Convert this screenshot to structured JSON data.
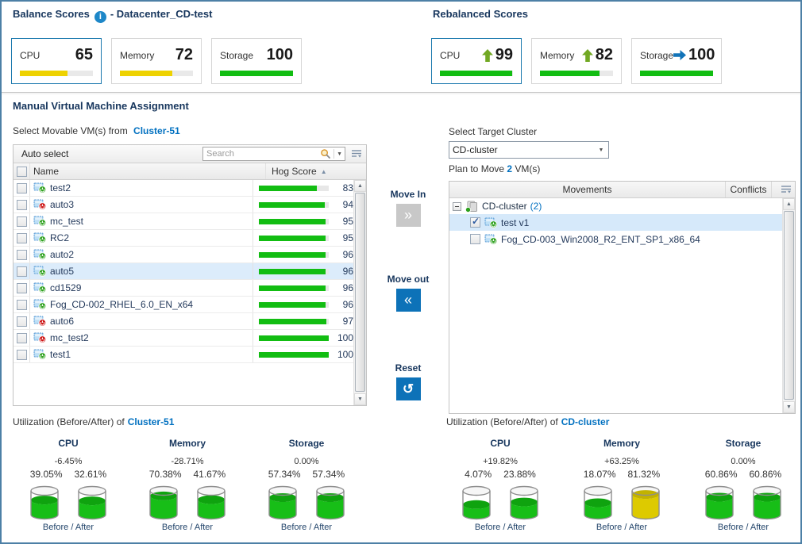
{
  "icons": {
    "info": "i",
    "dropdown": "▼",
    "sort_asc": "▲",
    "scroll_up": "▲",
    "scroll_down": "▼",
    "move_in_glyph": "»",
    "move_out_glyph": "«",
    "reset_glyph": "↺"
  },
  "colors": {
    "title_navy": "#17365d",
    "link_blue": "#0070c0",
    "bar_yellow": "#eed200",
    "bar_green": "#12bd12",
    "trend_up": "#71a823",
    "trend_right": "#1173b8",
    "button_blue": "#0d72b8",
    "button_disabled": "#c8c8c8",
    "vm_on": "#2ca01c",
    "vm_off": "#cc1111",
    "row_highlight": "#dcecfb",
    "cyl_green": "#17be17",
    "cyl_green_top": "#0fa30f",
    "cyl_yellow": "#ddca00",
    "cyl_yellow_top": "#c2b200"
  },
  "balance": {
    "title": "Balance Scores",
    "datacenter_suffix": "- Datacenter_CD-test",
    "cards": [
      {
        "label": "CPU",
        "value": "65",
        "percent": 65,
        "color": "#eed200",
        "selected": true
      },
      {
        "label": "Memory",
        "value": "72",
        "percent": 72,
        "color": "#eed200",
        "selected": false
      },
      {
        "label": "Storage",
        "value": "100",
        "percent": 100,
        "color": "#12bd12",
        "selected": false
      }
    ]
  },
  "rebalanced": {
    "title": "Rebalanced Scores",
    "cards": [
      {
        "label": "CPU",
        "value": "99",
        "percent": 99,
        "color": "#12bd12",
        "trend": "up",
        "selected": true
      },
      {
        "label": "Memory",
        "value": "82",
        "percent": 82,
        "color": "#12bd12",
        "trend": "up",
        "selected": false
      },
      {
        "label": "Storage",
        "value": "100",
        "percent": 100,
        "color": "#12bd12",
        "trend": "right",
        "selected": false
      }
    ]
  },
  "assignment": {
    "title": "Manual Virtual Machine Assignment",
    "source": {
      "label": "Select Movable VM(s) from",
      "cluster": "Cluster-51"
    },
    "toolbar": {
      "auto_select": "Auto select",
      "search_placeholder": "Search"
    },
    "table": {
      "name_col": "Name",
      "score_col": "Hog Score"
    },
    "vms": [
      {
        "name": "test2",
        "score": 83,
        "power": "on",
        "selected": false
      },
      {
        "name": "auto3",
        "score": 94,
        "power": "off",
        "selected": false
      },
      {
        "name": "mc_test",
        "score": 95,
        "power": "on",
        "selected": false
      },
      {
        "name": "RC2",
        "score": 95,
        "power": "on",
        "selected": false
      },
      {
        "name": "auto2",
        "score": 96,
        "power": "on",
        "selected": false
      },
      {
        "name": "auto5",
        "score": 96,
        "power": "on",
        "selected": true
      },
      {
        "name": "cd1529",
        "score": 96,
        "power": "on",
        "selected": false
      },
      {
        "name": "Fog_CD-002_RHEL_6.0_EN_x64",
        "score": 96,
        "power": "on",
        "selected": false
      },
      {
        "name": "auto6",
        "score": 97,
        "power": "off",
        "selected": false
      },
      {
        "name": "mc_test2",
        "score": 100,
        "power": "off",
        "selected": false
      },
      {
        "name": "test1",
        "score": 100,
        "power": "on",
        "selected": false
      }
    ],
    "actions": {
      "move_in": "Move In",
      "move_in_enabled": false,
      "move_out": "Move out",
      "move_out_enabled": true,
      "reset": "Reset",
      "reset_enabled": true
    },
    "target": {
      "label": "Select Target Cluster",
      "selected": "CD-cluster"
    },
    "plan": {
      "prefix": "Plan to Move",
      "count": "2",
      "suffix": "VM(s)"
    },
    "movements": {
      "movements_col": "Movements",
      "conflicts_col": "Conflicts",
      "group": {
        "name": "CD-cluster",
        "count": "(2)",
        "expanded": true
      },
      "items": [
        {
          "name": "test v1",
          "checked": true,
          "power": "on",
          "selected": true
        },
        {
          "name": "Fog_CD-003_Win2008_R2_ENT_SP1_x86_64",
          "checked": false,
          "power": "on",
          "selected": false
        }
      ]
    }
  },
  "utilization": {
    "before_after_label": "Before / After",
    "panels": [
      {
        "title_prefix": "Utilization (Before/After) of",
        "cluster": "Cluster-51",
        "metrics": [
          {
            "label": "CPU",
            "delta": "-6.45%",
            "before_label": "39.05%",
            "after_label": "32.61%",
            "before": 39.05,
            "after": 32.61
          },
          {
            "label": "Memory",
            "delta": "-28.71%",
            "before_label": "70.38%",
            "after_label": "41.67%",
            "before": 70.38,
            "after": 41.67
          },
          {
            "label": "Storage",
            "delta": "0.00%",
            "before_label": "57.34%",
            "after_label": "57.34%",
            "before": 57.34,
            "after": 57.34
          }
        ]
      },
      {
        "title_prefix": "Utilization (Before/After) of",
        "cluster": "CD-cluster",
        "metrics": [
          {
            "label": "CPU",
            "delta": "+19.82%",
            "before_label": "4.07%",
            "after_label": "23.88%",
            "before": 4.07,
            "after": 23.88
          },
          {
            "label": "Memory",
            "delta": "+63.25%",
            "before_label": "18.07%",
            "after_label": "81.32%",
            "before": 18.07,
            "after": 81.32
          },
          {
            "label": "Storage",
            "delta": "0.00%",
            "before_label": "60.86%",
            "after_label": "60.86%",
            "before": 60.86,
            "after": 60.86
          }
        ]
      }
    ]
  }
}
